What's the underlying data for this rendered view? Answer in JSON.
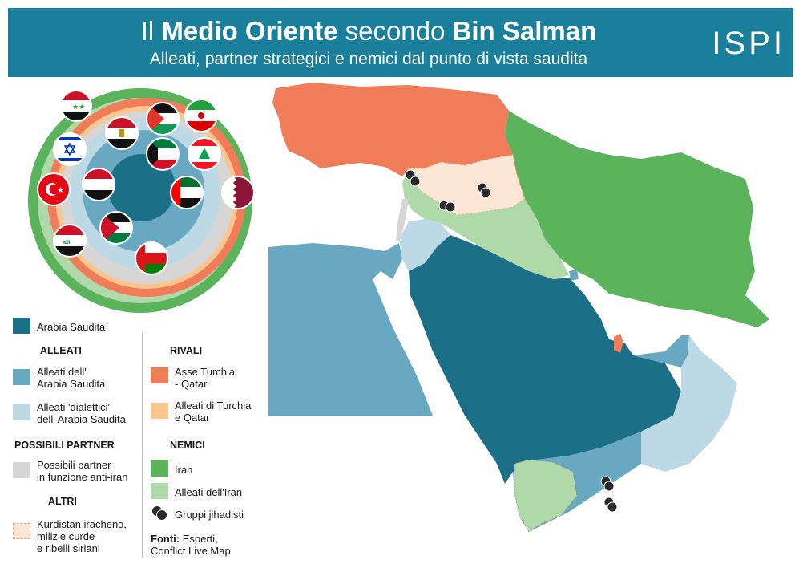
{
  "header": {
    "title_prefix": "Il ",
    "title_bold1": "Medio Oriente",
    "title_mid": " secondo ",
    "title_bold2": "Bin Salman",
    "subtitle": "Alleati, partner strategici e nemici dal punto di vista saudita",
    "logo": "ISPI"
  },
  "colors": {
    "saudi": "#1b6f86",
    "allies": "#68a8c0",
    "dialectic": "#bcd9e5",
    "partners": "#d6d6d6",
    "rivals": "#f07c5a",
    "rival_allies": "#fbc68d",
    "iran": "#5bb35c",
    "iran_allies": "#b0d9a9",
    "others": "#fde6d5",
    "jihad": "#2a2a2a"
  },
  "legend": {
    "saudi": "Arabia Saudita",
    "allies_head": "ALLEATI",
    "allies": [
      "Alleati dell'",
      "Arabia Saudita"
    ],
    "dialectic": [
      "Alleati 'dialettici'",
      "dell' Arabia Saudita"
    ],
    "partners_head": "POSSIBILI PARTNER",
    "partners": [
      "Possibili partner",
      "in funzione anti-iran"
    ],
    "others_head": "ALTRI",
    "others": [
      "Kurdistan iracheno,",
      "milizie curde",
      "e ribelli siriani"
    ],
    "rivals_head": "RIVALI",
    "rivals": [
      "Asse Turchia",
      "- Qatar"
    ],
    "rival_allies": [
      "Alleati di Turchia",
      "e Qatar"
    ],
    "enemies_head": "NEMICI",
    "iran": "Iran",
    "iran_allies": "Alleati dell'Iran",
    "jihad": "Gruppi jihadisti",
    "sources_bold": "Fonti:",
    "sources_rest": " Esperti,",
    "sources_line2": "Conflict Live Map"
  },
  "circle_flags": [
    "flag-syria",
    "flag-palestine",
    "flag-iran",
    "flag-egypt",
    "flag-kuwait",
    "flag-lebanon",
    "flag-israel",
    "flag-yemen",
    "flag-uae",
    "flag-qatar",
    "flag-turkey",
    "flag-jordan",
    "flag-iraq",
    "flag-oman"
  ],
  "jihad_group_count": 8
}
